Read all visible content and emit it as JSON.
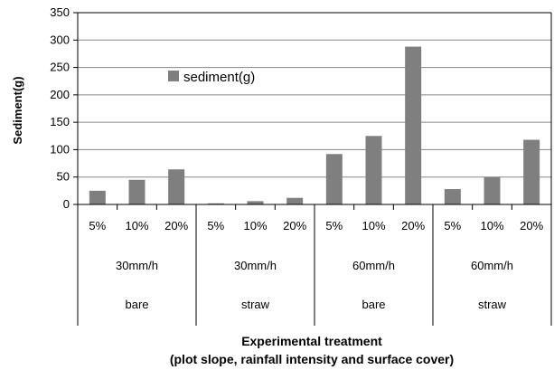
{
  "chart_data": {
    "type": "bar",
    "title": "",
    "ylabel": "Sediment(g)",
    "xlabel_line1": "Experimental treatment",
    "xlabel_line2": "(plot slope, rainfall intensity and surface cover)",
    "ylim": [
      0,
      350
    ],
    "yticks": [
      0,
      50,
      100,
      150,
      200,
      250,
      300,
      350
    ],
    "grid": true,
    "legend_position": "top-center",
    "bar_color": "#7f7f7f",
    "series": [
      {
        "name": "sediment(g)",
        "values": [
          25,
          45,
          64,
          2,
          6,
          12,
          92,
          125,
          288,
          28,
          50,
          118
        ]
      }
    ],
    "categories": [
      "5%",
      "10%",
      "20%",
      "5%",
      "10%",
      "20%",
      "5%",
      "10%",
      "20%",
      "5%",
      "10%",
      "20%"
    ],
    "rainfall_groups": [
      "30mm/h",
      "30mm/h",
      "60mm/h",
      "60mm/h"
    ],
    "cover_groups": [
      "bare",
      "straw",
      "bare",
      "straw"
    ]
  }
}
